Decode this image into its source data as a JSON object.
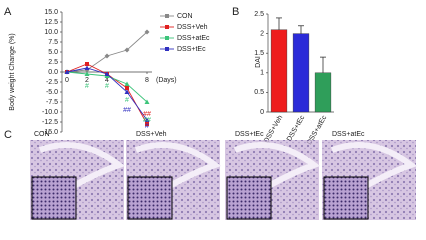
{
  "chart_data": [
    {
      "type": "line",
      "panel_label": "A",
      "ylabel": "Body weight Change (%)",
      "xlabel": "(Days)",
      "x": [
        0,
        2,
        4,
        6,
        8
      ],
      "xlim": [
        -0.5,
        8.5
      ],
      "xticks": [
        0,
        2,
        4,
        8
      ],
      "ylim": [
        -15,
        15
      ],
      "yticks": [
        {
          "value": -15,
          "label": "-15.0"
        },
        {
          "value": -12.5,
          "label": "-12.5"
        },
        {
          "value": -10,
          "label": "-10.0"
        },
        {
          "value": -7.5,
          "label": "-7.5"
        },
        {
          "value": -5,
          "label": "-5.0"
        },
        {
          "value": -2.5,
          "label": "-2.5"
        },
        {
          "value": 0,
          "label": "0.0"
        },
        {
          "value": 2.5,
          "label": "2.5"
        },
        {
          "value": 5,
          "label": "5.0"
        },
        {
          "value": 7.5,
          "label": "7.5"
        },
        {
          "value": 10,
          "label": "10.0"
        },
        {
          "value": 12.5,
          "label": "12.5"
        },
        {
          "value": 15,
          "label": "15.0"
        }
      ],
      "series": [
        {
          "name": "CON",
          "color": "#888888",
          "marker": "diamond",
          "values": [
            0,
            0.5,
            4,
            5.5,
            10
          ]
        },
        {
          "name": "DSS+Veh",
          "color": "#e02020",
          "marker": "square",
          "values": [
            0,
            2,
            -0.5,
            -4,
            -13
          ]
        },
        {
          "name": "DSS+atEc",
          "color": "#3cc47a",
          "marker": "triangle",
          "values": [
            0,
            -0.5,
            -1,
            -3,
            -7.5
          ]
        },
        {
          "name": "DSS+tEc",
          "color": "#3030c0",
          "marker": "triangle",
          "values": [
            0,
            1,
            -0.5,
            -5,
            -12
          ]
        }
      ],
      "annotations": [
        {
          "text": "#",
          "x": 2,
          "y": -3.5,
          "color": "#3cc47a"
        },
        {
          "text": "#",
          "x": 4,
          "y": -3.5,
          "color": "#3cc47a"
        },
        {
          "text": "#",
          "x": 6,
          "y": -7,
          "color": "#3cc47a"
        },
        {
          "text": "##",
          "x": 6,
          "y": -9.5,
          "color": "#3030c0"
        },
        {
          "text": "##",
          "x": 8,
          "y": -10.5,
          "color": "#e02020"
        },
        {
          "text": "##",
          "x": 8,
          "y": -12,
          "color": "#3cc47a"
        },
        {
          "text": "#",
          "x": 8,
          "y": -13.5,
          "color": "#3030c0"
        }
      ]
    },
    {
      "type": "bar",
      "panel_label": "B",
      "ylabel": "DAI",
      "categories": [
        "DSS+Veh",
        "DSS+tEc",
        "DSS+atEc"
      ],
      "values": [
        2.1,
        2.0,
        1.0
      ],
      "errors": [
        0.3,
        0.2,
        0.4
      ],
      "colors": [
        "#ee1c1c",
        "#2b2bd8",
        "#2f9e5a"
      ],
      "ylim": [
        0,
        2.5
      ],
      "yticks": [
        0,
        0.5,
        1,
        1.5,
        2,
        2.5
      ]
    }
  ],
  "panel_c": {
    "panel_label": "C",
    "labels": [
      "CON",
      "DSS+Veh",
      "DSS+tEc",
      "DSS+atEc"
    ]
  }
}
